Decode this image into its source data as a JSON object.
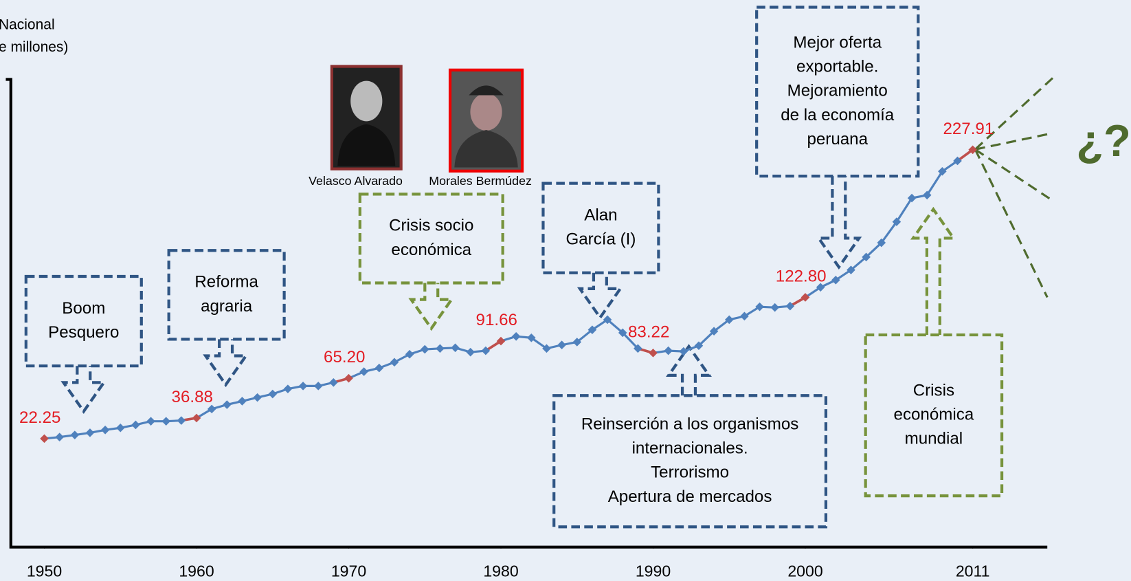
{
  "chart_data": {
    "type": "line",
    "y_label": [
      "Nacional",
      "e millones)"
    ],
    "x": [
      1950,
      1951,
      1952,
      1953,
      1954,
      1955,
      1956,
      1957,
      1958,
      1959,
      1960,
      1961,
      1962,
      1963,
      1964,
      1965,
      1966,
      1967,
      1968,
      1969,
      1970,
      1971,
      1972,
      1973,
      1974,
      1975,
      1976,
      1977,
      1978,
      1979,
      1980,
      1981,
      1982,
      1983,
      1984,
      1985,
      1986,
      1987,
      1988,
      1989,
      1990,
      1991,
      1992,
      1993,
      1994,
      1995,
      1996,
      1997,
      1998,
      1999,
      2000,
      2001,
      2002,
      2003,
      2004,
      2005,
      2006,
      2007,
      2008,
      2009,
      2010,
      2011
    ],
    "xlim": [
      1947.8,
      2015.9
    ],
    "xticks": [
      1950,
      1960,
      1970,
      1980,
      1990,
      2000,
      2011
    ],
    "ylim": [
      -55,
      278
    ],
    "series": [
      {
        "color": "#4f81bd",
        "highlight_color": "#c0504d",
        "label_color": "#e31c23",
        "values": [
          22.25,
          23.3,
          24.8,
          26.4,
          28.4,
          29.9,
          32.0,
          34.6,
          34.6,
          35.1,
          36.88,
          43.3,
          46.4,
          48.9,
          51.5,
          54.0,
          57.6,
          59.7,
          59.7,
          62.2,
          65.2,
          69.9,
          72.5,
          76.6,
          82.3,
          85.8,
          86.4,
          86.9,
          83.8,
          84.8,
          91.66,
          95.0,
          94.0,
          86.4,
          88.9,
          91.0,
          99.7,
          106.9,
          97.6,
          86.4,
          83.22,
          84.8,
          84.3,
          88.4,
          98.7,
          106.9,
          109.4,
          116.1,
          115.6,
          116.6,
          122.8,
          130.0,
          135.1,
          142.3,
          151.5,
          161.7,
          176.6,
          193.5,
          195.6,
          212.5,
          220.0,
          227.91
        ],
        "value_labels": [
          "22.25",
          null,
          null,
          null,
          null,
          null,
          null,
          null,
          null,
          null,
          "36.88",
          null,
          null,
          null,
          null,
          null,
          null,
          null,
          null,
          null,
          "65.20",
          null,
          null,
          null,
          null,
          null,
          null,
          null,
          null,
          null,
          "91.66",
          null,
          null,
          null,
          null,
          null,
          null,
          null,
          null,
          null,
          "83.22",
          null,
          null,
          null,
          null,
          null,
          null,
          null,
          null,
          null,
          "122.80",
          null,
          null,
          null,
          null,
          null,
          null,
          null,
          null,
          null,
          null,
          "227.91"
        ]
      }
    ],
    "annotations": [
      {
        "lines": [
          "Boom",
          "Pesquero"
        ],
        "color": "#2f5584"
      },
      {
        "lines": [
          "Reforma",
          "agraria"
        ],
        "color": "#2f5584"
      },
      {
        "lines": [
          "Crisis socio",
          "económica"
        ],
        "color": "#77933c"
      },
      {
        "lines": [
          "Alan",
          "García (I)"
        ],
        "color": "#2f5584"
      },
      {
        "lines": [
          "Mejor oferta",
          "exportable.",
          "Mejoramiento",
          "de la economía",
          "peruana"
        ],
        "color": "#2f5584"
      },
      {
        "lines": [
          "Reinserción a los organismos",
          "internacionales.",
          "Terrorismo",
          "Apertura de mercados"
        ],
        "color": "#2f5584"
      },
      {
        "lines": [
          "Crisis",
          "económica",
          "mundial"
        ],
        "color": "#77933c"
      }
    ],
    "photos": [
      {
        "caption": "Velasco Alvarado"
      },
      {
        "caption": "Morales Bermúdez"
      }
    ],
    "question_mark": "¿?",
    "question_color": "#4f6b2e"
  }
}
